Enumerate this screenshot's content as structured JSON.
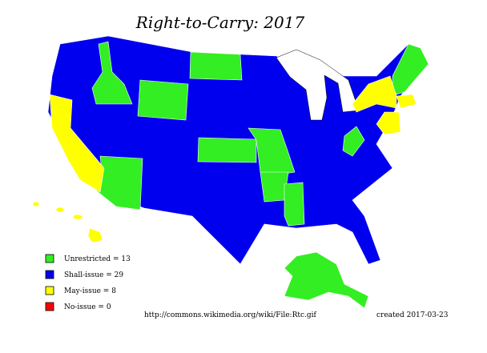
{
  "title": "Right-to-Carry: 2017",
  "legend": [
    {
      "label": "Unrestricted = 13",
      "color": "#33ee22"
    },
    {
      "label": "Shall-issue = 29",
      "color": "#0000ee"
    },
    {
      "label": "May-issue = 8",
      "color": "#ffff00"
    },
    {
      "label": "No-issue = 0",
      "color": "#ff0000"
    }
  ],
  "source": "http://commons.wikimedia.org/wiki/File:Rtc.gif",
  "created": "created 2017-03-23"
}
